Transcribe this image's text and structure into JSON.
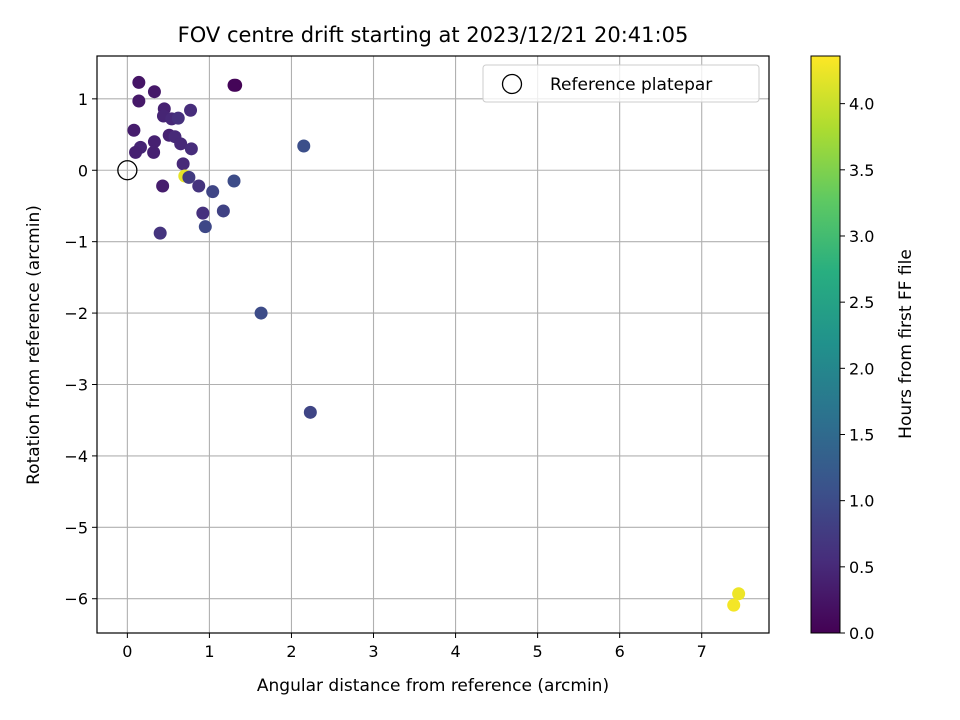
{
  "chart_data": {
    "type": "scatter",
    "title": "FOV centre drift starting at 2023/12/21 20:41:05",
    "xlabel": "Angular distance from reference (arcmin)",
    "ylabel": "Rotation from reference (arcmin)",
    "xlim": [
      -0.37,
      7.82
    ],
    "ylim": [
      -6.48,
      1.6
    ],
    "xticks": [
      0,
      1,
      2,
      3,
      4,
      5,
      6,
      7
    ],
    "xtick_labels": [
      "0",
      "1",
      "2",
      "3",
      "4",
      "5",
      "6",
      "7"
    ],
    "yticks": [
      1,
      0,
      -1,
      -2,
      -3,
      -4,
      -5,
      -6
    ],
    "ytick_labels": [
      "1",
      "0",
      "−1",
      "−2",
      "−3",
      "−4",
      "−5",
      "−6"
    ],
    "grid": true,
    "legend": {
      "position": "top-right",
      "entries": [
        "Reference platepar"
      ]
    },
    "reference": {
      "x": 0,
      "y": 0,
      "label": "Reference platepar"
    },
    "colorbar": {
      "label": "Hours from first FF file",
      "range": [
        0,
        4.36
      ],
      "ticks": [
        0.0,
        0.5,
        1.0,
        1.5,
        2.0,
        2.5,
        3.0,
        3.5,
        4.0
      ],
      "tick_labels": [
        "0.0",
        "0.5",
        "1.0",
        "1.5",
        "2.0",
        "2.5",
        "3.0",
        "3.5",
        "4.0"
      ],
      "colormap": "viridis"
    },
    "points": [
      {
        "x": 1.32,
        "y": 1.19,
        "t": 0.02
      },
      {
        "x": 1.3,
        "y": 1.19,
        "t": 0.05
      },
      {
        "x": 0.14,
        "y": 1.23,
        "t": 0.25
      },
      {
        "x": 0.33,
        "y": 1.1,
        "t": 0.3
      },
      {
        "x": 0.14,
        "y": 0.97,
        "t": 0.3
      },
      {
        "x": 0.45,
        "y": 0.86,
        "t": 0.4
      },
      {
        "x": 0.77,
        "y": 0.84,
        "t": 0.55
      },
      {
        "x": 0.44,
        "y": 0.76,
        "t": 0.45
      },
      {
        "x": 0.54,
        "y": 0.72,
        "t": 0.5
      },
      {
        "x": 0.62,
        "y": 0.73,
        "t": 0.6
      },
      {
        "x": 0.08,
        "y": 0.56,
        "t": 0.35
      },
      {
        "x": 0.51,
        "y": 0.49,
        "t": 0.4
      },
      {
        "x": 0.58,
        "y": 0.47,
        "t": 0.5
      },
      {
        "x": 0.33,
        "y": 0.4,
        "t": 0.4
      },
      {
        "x": 0.65,
        "y": 0.37,
        "t": 0.5
      },
      {
        "x": 0.16,
        "y": 0.32,
        "t": 0.45
      },
      {
        "x": 0.78,
        "y": 0.3,
        "t": 0.55
      },
      {
        "x": 0.1,
        "y": 0.25,
        "t": 0.4
      },
      {
        "x": 0.32,
        "y": 0.25,
        "t": 0.4
      },
      {
        "x": 0.68,
        "y": 0.09,
        "t": 0.5
      },
      {
        "x": 2.15,
        "y": 0.34,
        "t": 1.05
      },
      {
        "x": 0.7,
        "y": -0.08,
        "t": 4.2
      },
      {
        "x": 0.75,
        "y": -0.1,
        "t": 0.75
      },
      {
        "x": 1.3,
        "y": -0.15,
        "t": 1.0
      },
      {
        "x": 0.87,
        "y": -0.22,
        "t": 0.65
      },
      {
        "x": 0.43,
        "y": -0.22,
        "t": 0.35
      },
      {
        "x": 1.04,
        "y": -0.3,
        "t": 0.9
      },
      {
        "x": 1.17,
        "y": -0.57,
        "t": 0.85
      },
      {
        "x": 0.92,
        "y": -0.6,
        "t": 0.6
      },
      {
        "x": 0.95,
        "y": -0.79,
        "t": 0.95
      },
      {
        "x": 0.4,
        "y": -0.88,
        "t": 0.65
      },
      {
        "x": 1.63,
        "y": -2.0,
        "t": 1.0
      },
      {
        "x": 2.23,
        "y": -3.39,
        "t": 0.9
      },
      {
        "x": 7.45,
        "y": -5.93,
        "t": 4.25
      },
      {
        "x": 7.39,
        "y": -6.09,
        "t": 4.3
      }
    ]
  }
}
